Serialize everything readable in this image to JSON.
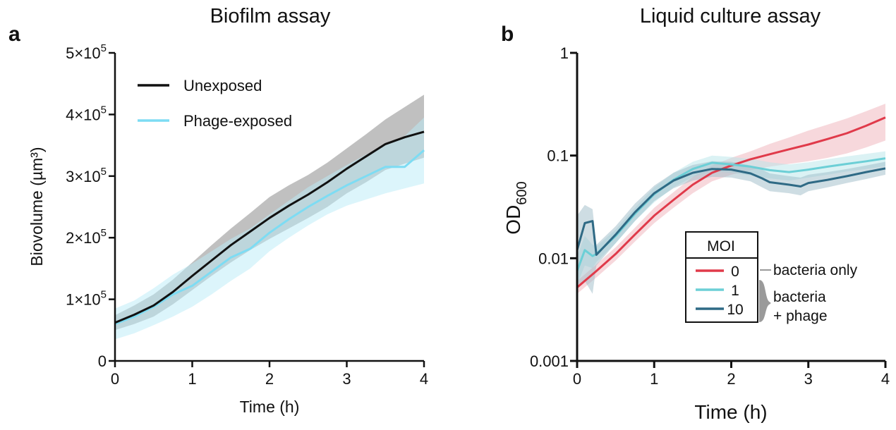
{
  "chart_data": [
    {
      "panel": "a",
      "title": "Biofilm assay",
      "type": "line",
      "xlabel": "Time (h)",
      "ylabel": "Biovolume (µm³)",
      "xlim": [
        0,
        4
      ],
      "ylim": [
        0,
        500000
      ],
      "x_ticks": [
        "0",
        "1",
        "2",
        "3",
        "4"
      ],
      "y_ticks": [
        {
          "value": 0,
          "mant": "0",
          "exp": ""
        },
        {
          "value": 100000,
          "mant": "1×10",
          "exp": "5"
        },
        {
          "value": 200000,
          "mant": "2×10",
          "exp": "5"
        },
        {
          "value": 300000,
          "mant": "3×10",
          "exp": "5"
        },
        {
          "value": 400000,
          "mant": "4×10",
          "exp": "5"
        },
        {
          "value": 500000,
          "mant": "5×10",
          "exp": "5"
        }
      ],
      "legend_position": "top-left",
      "series": [
        {
          "name": "Unexposed",
          "color": "#111111",
          "band_color": "#8c8c8c",
          "x": [
            0,
            0.25,
            0.5,
            0.75,
            1.0,
            1.25,
            1.5,
            1.75,
            2.0,
            2.25,
            2.5,
            2.75,
            3.0,
            3.25,
            3.5,
            3.75,
            4.0
          ],
          "y": [
            62000,
            75000,
            90000,
            112000,
            138000,
            163000,
            188000,
            210000,
            232000,
            252000,
            270000,
            290000,
            312000,
            332000,
            352000,
            363000,
            372000
          ],
          "lower": [
            50000,
            60000,
            72000,
            92000,
            115000,
            138000,
            160000,
            180000,
            198000,
            215000,
            232000,
            250000,
            272000,
            290000,
            310000,
            320000,
            330000
          ],
          "upper": [
            74000,
            90000,
            108000,
            132000,
            160000,
            188000,
            215000,
            240000,
            266000,
            285000,
            302000,
            322000,
            345000,
            368000,
            392000,
            412000,
            432000
          ]
        },
        {
          "name": "Phage-exposed",
          "color": "#7ddcf3",
          "band_color": "#b9ebf7",
          "x": [
            0,
            0.25,
            0.5,
            0.75,
            1.0,
            1.25,
            1.5,
            1.75,
            2.0,
            2.25,
            2.5,
            2.75,
            3.0,
            3.25,
            3.5,
            3.75,
            4.0
          ],
          "y": [
            60000,
            72000,
            88000,
            108000,
            122000,
            145000,
            168000,
            182000,
            208000,
            230000,
            250000,
            268000,
            285000,
            300000,
            315000,
            315000,
            342000
          ],
          "lower": [
            35000,
            45000,
            58000,
            72000,
            88000,
            108000,
            130000,
            150000,
            178000,
            200000,
            220000,
            238000,
            252000,
            262000,
            272000,
            280000,
            288000
          ],
          "upper": [
            85000,
            98000,
            118000,
            140000,
            158000,
            178000,
            198000,
            215000,
            238000,
            260000,
            282000,
            300000,
            318000,
            335000,
            350000,
            365000,
            395000
          ]
        }
      ]
    },
    {
      "panel": "b",
      "title": "Liquid culture assay",
      "type": "line",
      "xlabel": "Time (h)",
      "ylabel_main": "OD",
      "ylabel_sub": "600",
      "xlim": [
        0,
        4
      ],
      "ylim": [
        0.001,
        1
      ],
      "y_scale": "log",
      "x_ticks": [
        "0",
        "1",
        "2",
        "3",
        "4"
      ],
      "y_ticks": [
        {
          "value": 0.001,
          "label": "0.001"
        },
        {
          "value": 0.01,
          "label": "0.01"
        },
        {
          "value": 0.1,
          "label": "0.1"
        },
        {
          "value": 1,
          "label": "1"
        }
      ],
      "legend_title": "MOI",
      "legend_position": "lower-right",
      "annotations": {
        "bacteria_only": "bacteria only",
        "bacteria_phage_line1": "bacteria",
        "bacteria_phage_line2": "+ phage"
      },
      "series": [
        {
          "name": "0",
          "color": "#e03a4a",
          "band_color": "#f0b2ba",
          "x": [
            0,
            0.25,
            0.5,
            0.75,
            1.0,
            1.25,
            1.5,
            1.75,
            2.0,
            2.25,
            2.5,
            2.75,
            3.0,
            3.25,
            3.5,
            3.75,
            4.0
          ],
          "y": [
            0.0052,
            0.0075,
            0.011,
            0.017,
            0.026,
            0.037,
            0.052,
            0.068,
            0.08,
            0.092,
            0.103,
            0.115,
            0.128,
            0.145,
            0.165,
            0.195,
            0.235
          ],
          "lower": [
            0.0045,
            0.0065,
            0.0095,
            0.0145,
            0.022,
            0.031,
            0.043,
            0.056,
            0.065,
            0.072,
            0.078,
            0.083,
            0.088,
            0.095,
            0.105,
            0.12,
            0.14
          ],
          "upper": [
            0.006,
            0.0087,
            0.0128,
            0.0198,
            0.031,
            0.044,
            0.062,
            0.08,
            0.095,
            0.11,
            0.13,
            0.15,
            0.175,
            0.2,
            0.23,
            0.27,
            0.32
          ]
        },
        {
          "name": "1",
          "color": "#6ccfd6",
          "band_color": "#b7e6ea",
          "x": [
            0,
            0.1,
            0.2,
            0.25,
            0.5,
            0.75,
            1.0,
            1.25,
            1.5,
            1.75,
            2.0,
            2.25,
            2.5,
            2.75,
            3.0,
            3.25,
            3.5,
            3.75,
            4.0
          ],
          "y": [
            0.0075,
            0.012,
            0.0105,
            0.011,
            0.0165,
            0.027,
            0.042,
            0.058,
            0.074,
            0.085,
            0.082,
            0.078,
            0.072,
            0.069,
            0.073,
            0.078,
            0.083,
            0.088,
            0.094
          ],
          "lower": [
            0.0055,
            0.0085,
            0.008,
            0.0092,
            0.014,
            0.023,
            0.035,
            0.049,
            0.062,
            0.07,
            0.068,
            0.064,
            0.06,
            0.057,
            0.061,
            0.065,
            0.07,
            0.074,
            0.079
          ],
          "upper": [
            0.0105,
            0.0165,
            0.0135,
            0.013,
            0.019,
            0.031,
            0.049,
            0.068,
            0.087,
            0.1,
            0.097,
            0.093,
            0.086,
            0.082,
            0.086,
            0.092,
            0.098,
            0.104,
            0.11
          ]
        },
        {
          "name": "10",
          "color": "#2f6a85",
          "band_color": "#9dbcc7",
          "x": [
            0,
            0.1,
            0.2,
            0.25,
            0.5,
            0.75,
            1.0,
            1.25,
            1.5,
            1.75,
            2.0,
            2.25,
            2.4,
            2.5,
            2.75,
            2.9,
            3.0,
            3.25,
            3.5,
            3.75,
            4.0
          ],
          "y": [
            0.012,
            0.022,
            0.023,
            0.0108,
            0.017,
            0.028,
            0.043,
            0.057,
            0.068,
            0.074,
            0.073,
            0.067,
            0.06,
            0.055,
            0.052,
            0.05,
            0.054,
            0.058,
            0.063,
            0.069,
            0.075
          ],
          "lower": [
            0.0055,
            0.006,
            0.0045,
            0.0085,
            0.014,
            0.023,
            0.036,
            0.048,
            0.057,
            0.062,
            0.061,
            0.056,
            0.049,
            0.045,
            0.043,
            0.041,
            0.045,
            0.049,
            0.054,
            0.059,
            0.065
          ],
          "upper": [
            0.026,
            0.033,
            0.03,
            0.0135,
            0.0205,
            0.034,
            0.051,
            0.068,
            0.081,
            0.088,
            0.087,
            0.08,
            0.073,
            0.067,
            0.063,
            0.061,
            0.065,
            0.069,
            0.074,
            0.08,
            0.087
          ]
        }
      ]
    }
  ]
}
